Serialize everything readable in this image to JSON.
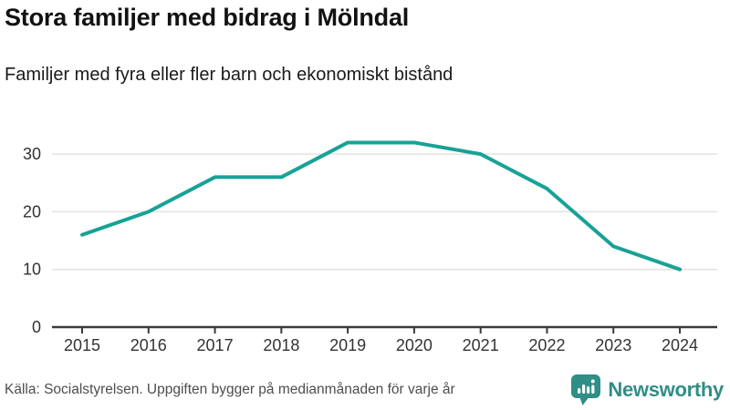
{
  "header": {
    "title": "Stora familjer med bidrag i Mölndal",
    "subtitle": "Familjer med fyra eller fler barn och ekonomiskt bistånd"
  },
  "chart_data": {
    "type": "line",
    "title": "Stora familjer med bidrag i Mölndal",
    "subtitle": "Familjer med fyra eller fler barn och ekonomiskt bistånd",
    "x": [
      2015,
      2016,
      2017,
      2018,
      2019,
      2020,
      2021,
      2022,
      2023,
      2024
    ],
    "series": [
      {
        "name": "Familjer med fyra eller fler barn och ekonomiskt bistånd",
        "values": [
          16,
          20,
          26,
          26,
          32,
          32,
          30,
          24,
          14,
          10
        ]
      }
    ],
    "xlabel": "",
    "ylabel": "",
    "yticks": [
      0,
      10,
      20,
      30
    ],
    "ylim": [
      0,
      34
    ],
    "grid": "horizontal",
    "legend": "none",
    "line_color": "#18a296",
    "grid_color": "#e2e2e2",
    "axis_color": "#3a3a3a",
    "tick_label_color": "#333333"
  },
  "footer": {
    "source": "Källa: Socialstyrelsen. Uppgiften bygger på medianmånaden för varje år",
    "brand": "Newsworthy",
    "brand_color": "#2f8e86"
  }
}
